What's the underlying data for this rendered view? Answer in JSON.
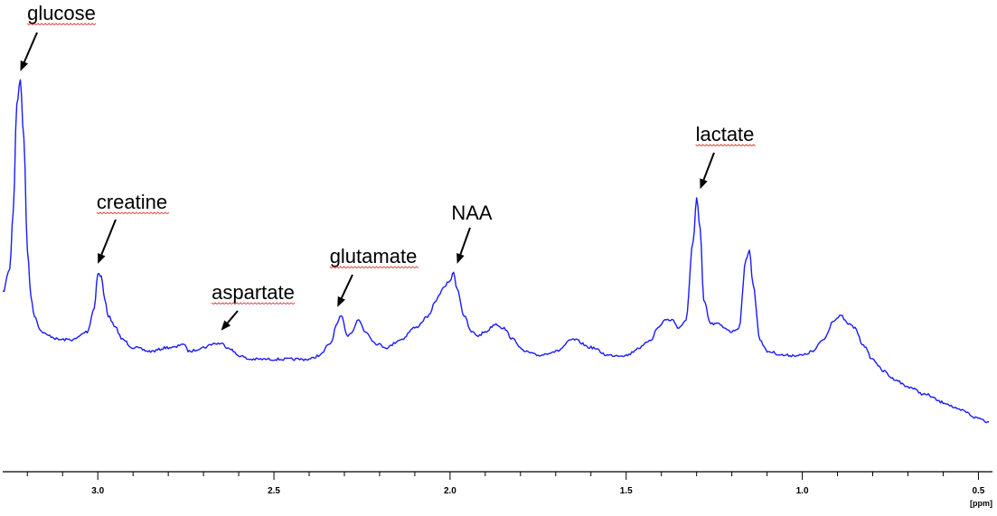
{
  "chart_data": {
    "type": "line",
    "title": "",
    "xlabel": "[ppm]",
    "ylabel": "",
    "x_reversed": true,
    "xlim": [
      3.27,
      0.46
    ],
    "ylim": [
      0,
      100
    ],
    "grid": false,
    "legend": "none",
    "line_color": "#1a1aff",
    "xticks": [
      {
        "value": 3.0,
        "label": "3.0"
      },
      {
        "value": 2.5,
        "label": "2.5"
      },
      {
        "value": 2.0,
        "label": "2.0"
      },
      {
        "value": 1.5,
        "label": "1.5"
      },
      {
        "value": 1.0,
        "label": "1.0"
      },
      {
        "value": 0.5,
        "label": "0.5"
      }
    ],
    "series": [
      {
        "x": [
          3.27,
          3.25,
          3.24,
          3.23,
          3.22,
          3.21,
          3.2,
          3.19,
          3.18,
          3.16,
          3.14,
          3.11,
          3.07,
          3.03,
          3.01,
          3.0,
          2.99,
          2.98,
          2.97,
          2.95,
          2.93,
          2.9,
          2.85,
          2.8,
          2.78,
          2.76,
          2.74,
          2.7,
          2.67,
          2.65,
          2.63,
          2.6,
          2.57,
          2.53,
          2.5,
          2.45,
          2.4,
          2.37,
          2.34,
          2.32,
          2.31,
          2.29,
          2.28,
          2.26,
          2.24,
          2.21,
          2.18,
          2.14,
          2.1,
          2.06,
          2.04,
          2.02,
          2.0,
          1.99,
          1.98,
          1.96,
          1.94,
          1.92,
          1.9,
          1.87,
          1.85,
          1.82,
          1.79,
          1.75,
          1.7,
          1.65,
          1.6,
          1.55,
          1.5,
          1.46,
          1.43,
          1.41,
          1.39,
          1.37,
          1.35,
          1.33,
          1.31,
          1.3,
          1.29,
          1.28,
          1.26,
          1.24,
          1.22,
          1.2,
          1.18,
          1.16,
          1.15,
          1.14,
          1.12,
          1.1,
          1.05,
          1.0,
          0.97,
          0.94,
          0.91,
          0.89,
          0.87,
          0.85,
          0.83,
          0.8,
          0.77,
          0.74,
          0.7,
          0.65,
          0.6,
          0.55,
          0.5,
          0.47
        ],
        "values": [
          44,
          50,
          65,
          92,
          98,
          83,
          55,
          43,
          38,
          34,
          33,
          32,
          32,
          34,
          40,
          49,
          48,
          42,
          38,
          35,
          32,
          30,
          29,
          30,
          30,
          31,
          29,
          30,
          31,
          31,
          30,
          28,
          27,
          27,
          27,
          27,
          27,
          28,
          31,
          36,
          38,
          33,
          34,
          37,
          34,
          31,
          30,
          32,
          35,
          38,
          42,
          45,
          47,
          49,
          45,
          38,
          34,
          33,
          34,
          36,
          35,
          32,
          29,
          28,
          29,
          32,
          30,
          28,
          28,
          30,
          32,
          35,
          37,
          37,
          35,
          37,
          57,
          68,
          60,
          42,
          36,
          36,
          35,
          34,
          35,
          52,
          55,
          46,
          32,
          29,
          28,
          28,
          29,
          32,
          37,
          38,
          36,
          35,
          31,
          27,
          24,
          22,
          20,
          18,
          16,
          14,
          12,
          11
        ]
      }
    ],
    "annotations": [
      {
        "label": "glucose",
        "x": 3.22,
        "y": 98
      },
      {
        "label": "creatine",
        "x": 3.0,
        "y": 49
      },
      {
        "label": "aspartate",
        "x": 2.65,
        "y": 32
      },
      {
        "label": "glutamate",
        "x": 2.32,
        "y": 38
      },
      {
        "label": "NAA",
        "x": 1.98,
        "y": 49
      },
      {
        "label": "lactate",
        "x": 1.29,
        "y": 68
      }
    ]
  }
}
